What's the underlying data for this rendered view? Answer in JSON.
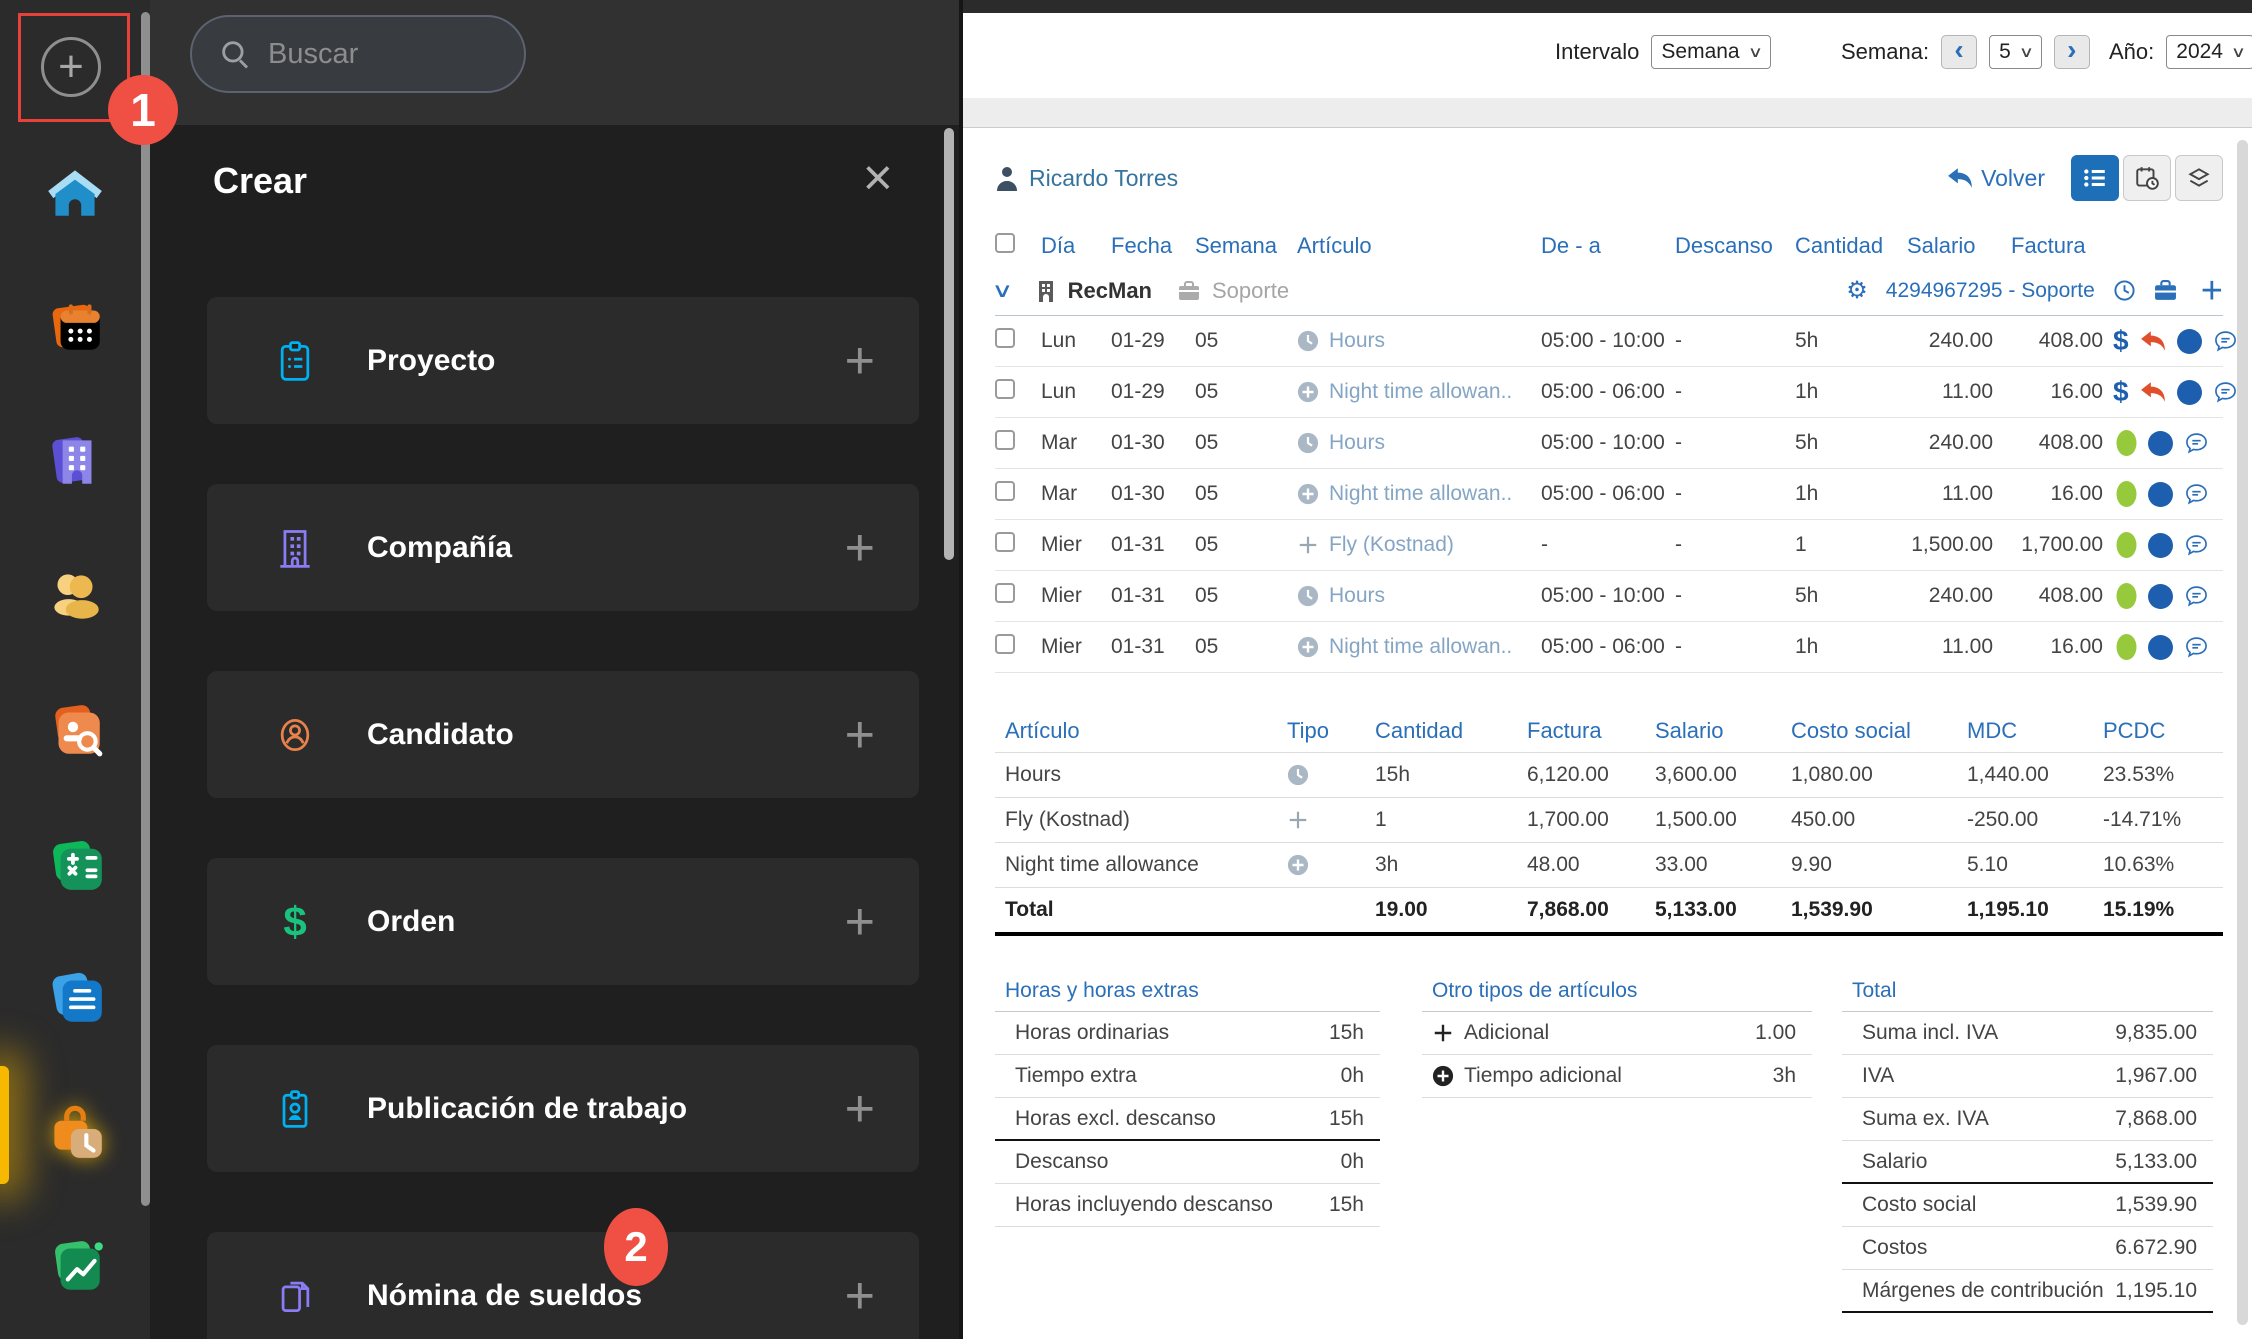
{
  "annotations": {
    "badge1": "1",
    "badge2": "2"
  },
  "topbar": {
    "interval_label": "Intervalo",
    "interval_value": "Semana",
    "week_label": "Semana:",
    "week_value": "5",
    "year_label": "Año:",
    "year_value": "2024"
  },
  "sidebar": {
    "icons": [
      {
        "name": "home"
      },
      {
        "name": "schedule"
      },
      {
        "name": "companies"
      },
      {
        "name": "candidates"
      },
      {
        "name": "candidate-search"
      },
      {
        "name": "finance"
      },
      {
        "name": "documents"
      },
      {
        "name": "time-tracking"
      },
      {
        "name": "reports"
      }
    ]
  },
  "create_panel": {
    "search_placeholder": "Buscar",
    "title": "Crear",
    "items": [
      {
        "label": "Proyecto",
        "icon": "clipboard"
      },
      {
        "label": "Compañía",
        "icon": "building"
      },
      {
        "label": "Candidato",
        "icon": "person-circle"
      },
      {
        "label": "Orden",
        "icon": "dollar-sign"
      },
      {
        "label": "Publicación de trabajo",
        "icon": "id-badge"
      },
      {
        "label": "Nómina de sueldos",
        "icon": "pages"
      }
    ]
  },
  "timesheet": {
    "user": "Ricardo Torres",
    "back_label": "Volver",
    "columns": [
      "Día",
      "Fecha",
      "Semana",
      "Artículo",
      "De - a",
      "Descanso",
      "Cantidad",
      "Salario",
      "Factura"
    ],
    "group": {
      "name": "RecMan",
      "department": "Soporte",
      "reference": "4294967295 - Soporte"
    },
    "rows": [
      {
        "day": "Lun",
        "date": "01-29",
        "week": "05",
        "article": "Hours",
        "article_icon": "clock",
        "time": "05:00 - 10:00",
        "rest": "-",
        "qty": "5h",
        "salary": "240.00",
        "invoice": "408.00",
        "status": [
          "dollar",
          "undo",
          "dot-blue",
          "bubble"
        ]
      },
      {
        "day": "Lun",
        "date": "01-29",
        "week": "05",
        "article": "Night time allowan..",
        "article_icon": "plus-circle",
        "time": "05:00 - 06:00",
        "rest": "-",
        "qty": "1h",
        "salary": "11.00",
        "invoice": "16.00",
        "status": [
          "dollar",
          "undo",
          "dot-blue",
          "bubble"
        ]
      },
      {
        "day": "Mar",
        "date": "01-30",
        "week": "05",
        "article": "Hours",
        "article_icon": "clock",
        "time": "05:00 - 10:00",
        "rest": "-",
        "qty": "5h",
        "salary": "240.00",
        "invoice": "408.00",
        "status": [
          "dot-green",
          "dot-blue",
          "bubble"
        ]
      },
      {
        "day": "Mar",
        "date": "01-30",
        "week": "05",
        "article": "Night time allowan..",
        "article_icon": "plus-circle",
        "time": "05:00 - 06:00",
        "rest": "-",
        "qty": "1h",
        "salary": "11.00",
        "invoice": "16.00",
        "status": [
          "dot-green",
          "dot-blue",
          "bubble"
        ]
      },
      {
        "day": "Mier",
        "date": "01-31",
        "week": "05",
        "article": "Fly (Kostnad)",
        "article_icon": "plus",
        "time": "-",
        "rest": "-",
        "qty": "1",
        "salary": "1,500.00",
        "invoice": "1,700.00",
        "status": [
          "dot-green",
          "dot-blue",
          "bubble"
        ]
      },
      {
        "day": "Mier",
        "date": "01-31",
        "week": "05",
        "article": "Hours",
        "article_icon": "clock",
        "time": "05:00 - 10:00",
        "rest": "-",
        "qty": "5h",
        "salary": "240.00",
        "invoice": "408.00",
        "status": [
          "dot-green",
          "dot-blue",
          "bubble"
        ]
      },
      {
        "day": "Mier",
        "date": "01-31",
        "week": "05",
        "article": "Night time allowan..",
        "article_icon": "plus-circle",
        "time": "05:00 - 06:00",
        "rest": "-",
        "qty": "1h",
        "salary": "11.00",
        "invoice": "16.00",
        "status": [
          "dot-green",
          "dot-blue",
          "bubble"
        ]
      }
    ],
    "summary": {
      "columns": [
        "Artículo",
        "Tipo",
        "Cantidad",
        "Factura",
        "Salario",
        "Costo social",
        "MDC",
        "PCDC"
      ],
      "rows": [
        {
          "article": "Hours",
          "type_icon": "clock",
          "qty": "15h",
          "invoice": "6,120.00",
          "salary": "3,600.00",
          "social": "1,080.00",
          "mdc": "1,440.00",
          "pcdc": "23.53%"
        },
        {
          "article": "Fly (Kostnad)",
          "type_icon": "plus",
          "qty": "1",
          "invoice": "1,700.00",
          "salary": "1,500.00",
          "social": "450.00",
          "mdc": "-250.00",
          "pcdc": "-14.71%"
        },
        {
          "article": "Night time allowance",
          "type_icon": "plus-circle",
          "qty": "3h",
          "invoice": "48.00",
          "salary": "33.00",
          "social": "9.90",
          "mdc": "5.10",
          "pcdc": "10.63%"
        }
      ],
      "total": {
        "label": "Total",
        "qty": "19.00",
        "invoice": "7,868.00",
        "salary": "5,133.00",
        "social": "1,539.90",
        "mdc": "1,195.10",
        "pcdc": "15.19%"
      }
    }
  },
  "panels": {
    "hours": {
      "title": "Horas y horas extras",
      "rows": [
        {
          "label": "Horas ordinarias",
          "value": "15h"
        },
        {
          "label": "Tiempo extra",
          "value": "0h"
        },
        {
          "label": "Horas excl. descanso",
          "value": "15h"
        },
        {
          "label": "Descanso",
          "value": "0h"
        },
        {
          "label": "Horas incluyendo descanso",
          "value": "15h"
        }
      ]
    },
    "other": {
      "title": "Otro tipos de artículos",
      "rows": [
        {
          "label": "Adicional",
          "value": "1.00",
          "icon": "plus-dark"
        },
        {
          "label": "Tiempo adicional",
          "value": "3h",
          "icon": "plus-circle-dark"
        }
      ]
    },
    "totals": {
      "title": "Total",
      "rows": [
        {
          "label": "Suma incl. IVA",
          "value": "9,835.00"
        },
        {
          "label": "IVA",
          "value": "1,967.00"
        },
        {
          "label": "Suma ex. IVA",
          "value": "7,868.00"
        },
        {
          "label": "Salario",
          "value": "5,133.00"
        },
        {
          "label": "Costo social",
          "value": "1,539.90"
        },
        {
          "label": "Costos",
          "value": "6.672.90"
        },
        {
          "label": "Márgenes de contribución",
          "value": "1,195.10"
        }
      ]
    }
  }
}
